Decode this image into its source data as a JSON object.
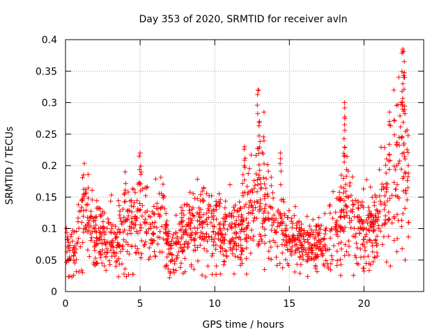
{
  "chart_data": {
    "type": "scatter",
    "title": "Day 353 of 2020, SRMTID for receiver avln",
    "xlabel": "GPS time / hours",
    "ylabel": "SRMTID / TECUs",
    "xlim": [
      0,
      24
    ],
    "ylim": [
      0,
      0.4
    ],
    "x_ticks": [
      0,
      5,
      10,
      15,
      20
    ],
    "x_tick_labels": [
      "0",
      "5",
      "10",
      "15",
      "20"
    ],
    "y_ticks": [
      0,
      0.05,
      0.1,
      0.15,
      0.2,
      0.25,
      0.3,
      0.35,
      0.4
    ],
    "y_tick_labels": [
      "0",
      "0.05",
      "0.1",
      "0.15",
      "0.2",
      "0.25",
      "0.3",
      "0.35",
      "0.4"
    ],
    "grid": true,
    "marker": "+",
    "marker_color": "#ff0000",
    "x_range_of_data": [
      0,
      23
    ],
    "profile": [
      {
        "x": 0.0,
        "y": 0.085
      },
      {
        "x": 0.5,
        "y": 0.06
      },
      {
        "x": 1.0,
        "y": 0.09
      },
      {
        "x": 1.2,
        "y": 0.13
      },
      {
        "x": 2.0,
        "y": 0.08
      },
      {
        "x": 3.0,
        "y": 0.085
      },
      {
        "x": 4.0,
        "y": 0.1
      },
      {
        "x": 5.0,
        "y": 0.12
      },
      {
        "x": 6.0,
        "y": 0.09
      },
      {
        "x": 6.5,
        "y": 0.12
      },
      {
        "x": 7.0,
        "y": 0.06
      },
      {
        "x": 8.0,
        "y": 0.09
      },
      {
        "x": 9.0,
        "y": 0.11
      },
      {
        "x": 10.0,
        "y": 0.1
      },
      {
        "x": 11.0,
        "y": 0.09
      },
      {
        "x": 12.0,
        "y": 0.11
      },
      {
        "x": 13.0,
        "y": 0.14
      },
      {
        "x": 14.0,
        "y": 0.1
      },
      {
        "x": 15.0,
        "y": 0.085
      },
      {
        "x": 16.0,
        "y": 0.075
      },
      {
        "x": 17.0,
        "y": 0.07
      },
      {
        "x": 18.0,
        "y": 0.09
      },
      {
        "x": 18.7,
        "y": 0.15
      },
      {
        "x": 19.5,
        "y": 0.11
      },
      {
        "x": 20.0,
        "y": 0.09
      },
      {
        "x": 21.0,
        "y": 0.12
      },
      {
        "x": 21.7,
        "y": 0.15
      },
      {
        "x": 22.5,
        "y": 0.2
      },
      {
        "x": 23.0,
        "y": 0.17
      }
    ],
    "spikes": [
      {
        "x": 4.0,
        "y": 0.19
      },
      {
        "x": 5.0,
        "y": 0.22
      },
      {
        "x": 12.0,
        "y": 0.23
      },
      {
        "x": 12.9,
        "y": 0.32
      },
      {
        "x": 13.3,
        "y": 0.285
      },
      {
        "x": 13.0,
        "y": 0.27
      },
      {
        "x": 14.4,
        "y": 0.22
      },
      {
        "x": 18.7,
        "y": 0.3
      },
      {
        "x": 18.7,
        "y": 0.265
      },
      {
        "x": 22.0,
        "y": 0.32
      },
      {
        "x": 22.6,
        "y": 0.385
      },
      {
        "x": 22.7,
        "y": 0.365
      },
      {
        "x": 22.6,
        "y": 0.33
      },
      {
        "x": 22.5,
        "y": 0.3
      },
      {
        "x": 21.7,
        "y": 0.27
      }
    ],
    "approx_point_count": 1500
  }
}
